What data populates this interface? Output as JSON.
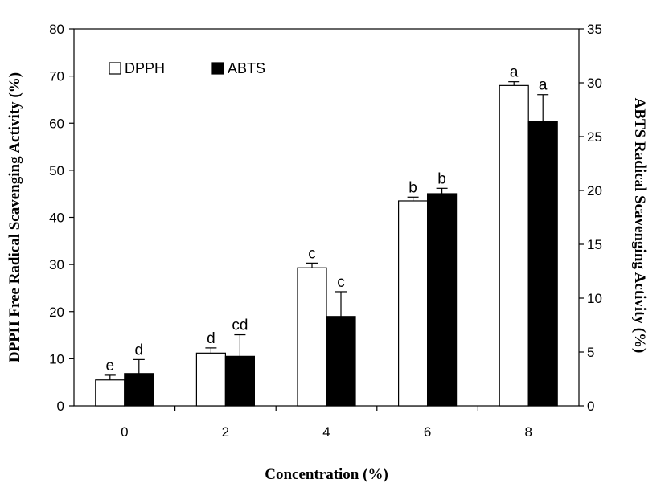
{
  "chart_data": {
    "type": "bar",
    "categories": [
      "0",
      "2",
      "4",
      "6",
      "8"
    ],
    "xlabel": "Concentration (%)",
    "ylabel_left": "DPPH Free Radical Scavenging Activity (%)",
    "ylabel_right": "ABTS Radical Scavenging Activity (%)",
    "ylim_left": [
      0,
      80
    ],
    "ylim_right": [
      0,
      35
    ],
    "yticks_left": [
      "0",
      "10",
      "20",
      "30",
      "40",
      "50",
      "60",
      "70",
      "80"
    ],
    "yticks_right": [
      "0",
      "5",
      "10",
      "15",
      "20",
      "25",
      "30",
      "35"
    ],
    "legend_position": "top-left",
    "grid": false,
    "series": [
      {
        "name": "DPPH",
        "axis": "left",
        "fill": "#ffffff",
        "values": [
          5.5,
          11.2,
          29.3,
          43.5,
          68.0
        ],
        "errors": [
          1.0,
          1.1,
          1.0,
          0.8,
          0.8
        ],
        "letters": [
          "e",
          "d",
          "c",
          "b",
          "a"
        ]
      },
      {
        "name": "ABTS",
        "axis": "right",
        "fill": "#000000",
        "values": [
          3.0,
          4.6,
          8.3,
          19.7,
          26.4
        ],
        "errors": [
          1.3,
          2.0,
          2.3,
          0.5,
          2.5
        ],
        "letters": [
          "d",
          "cd",
          "c",
          "b",
          "a"
        ]
      }
    ]
  }
}
